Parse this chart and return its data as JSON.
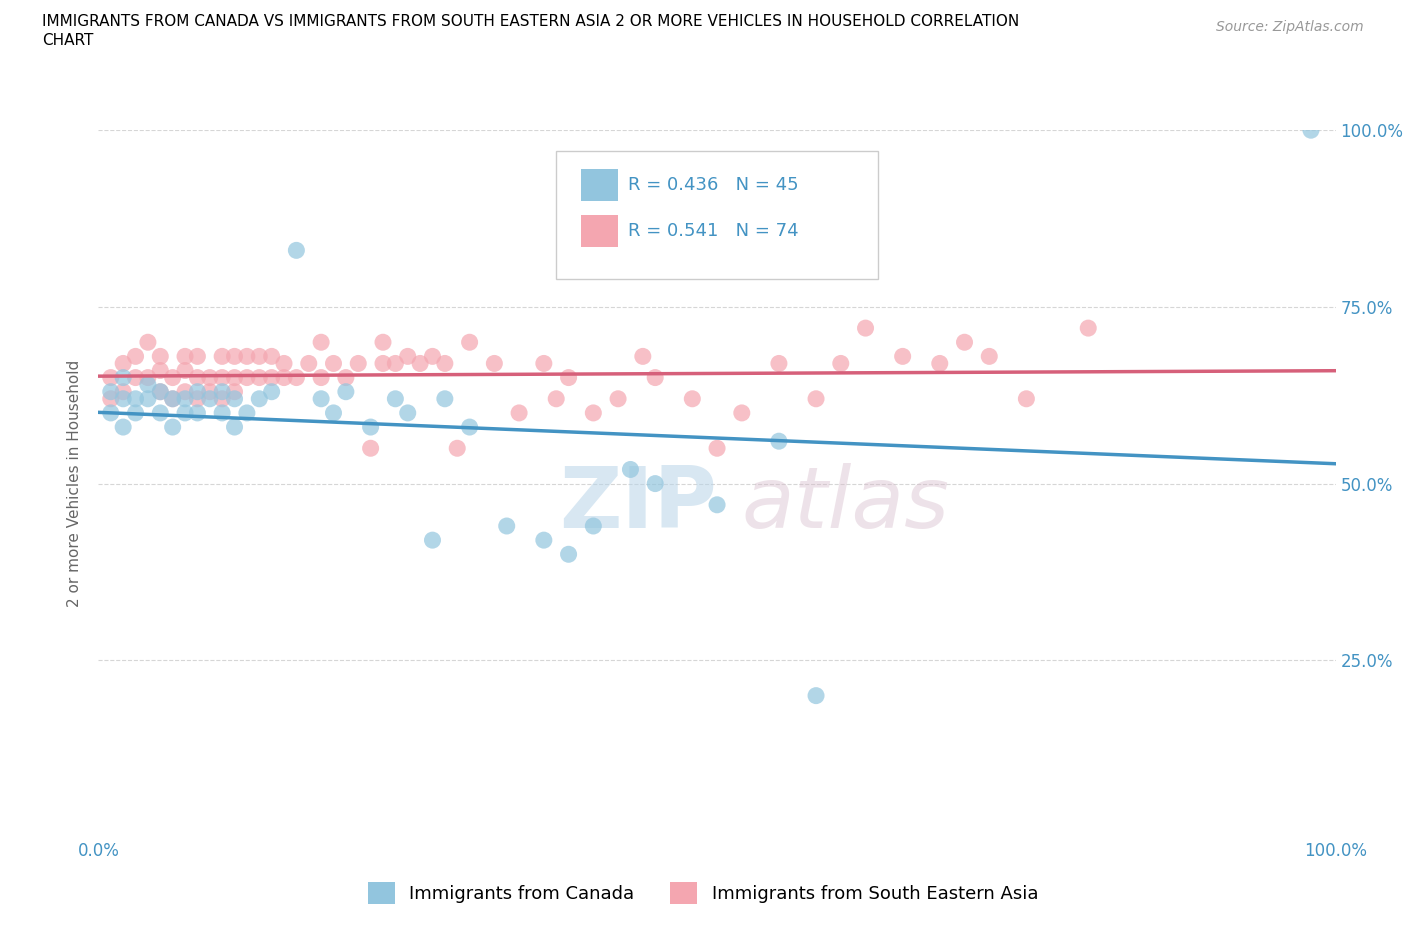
{
  "title_line1": "IMMIGRANTS FROM CANADA VS IMMIGRANTS FROM SOUTH EASTERN ASIA 2 OR MORE VEHICLES IN HOUSEHOLD CORRELATION",
  "title_line2": "CHART",
  "source": "Source: ZipAtlas.com",
  "ylabel": "2 or more Vehicles in Household",
  "xlim": [
    0,
    100
  ],
  "ylim": [
    0,
    100
  ],
  "ytick_labels": [
    "25.0%",
    "50.0%",
    "75.0%",
    "100.0%"
  ],
  "ytick_positions": [
    25,
    50,
    75,
    100
  ],
  "legend_r_canada": "R = 0.436",
  "legend_n_canada": "N = 45",
  "legend_r_sea": "R = 0.541",
  "legend_n_sea": "N = 74",
  "color_canada": "#92c5de",
  "color_sea": "#f4a6b0",
  "color_regression_canada": "#4393c3",
  "color_regression_sea": "#d6607a",
  "color_title": "#000000",
  "color_source": "#999999",
  "color_axis_labels": "#4393c3",
  "background_color": "#ffffff",
  "grid_color": "#cccccc",
  "canada_x": [
    1,
    1,
    2,
    2,
    2,
    3,
    3,
    4,
    4,
    5,
    5,
    6,
    6,
    7,
    7,
    8,
    8,
    9,
    10,
    10,
    11,
    11,
    12,
    13,
    14,
    16,
    18,
    19,
    20,
    22,
    24,
    25,
    27,
    28,
    30,
    33,
    36,
    38,
    40,
    43,
    45,
    50,
    55,
    58,
    98
  ],
  "canada_y": [
    63,
    60,
    58,
    62,
    65,
    60,
    62,
    64,
    62,
    63,
    60,
    62,
    58,
    60,
    62,
    63,
    60,
    62,
    63,
    60,
    62,
    58,
    60,
    62,
    63,
    83,
    62,
    60,
    63,
    58,
    62,
    60,
    42,
    62,
    58,
    44,
    42,
    40,
    44,
    52,
    50,
    47,
    56,
    20,
    100
  ],
  "sea_x": [
    1,
    1,
    2,
    2,
    3,
    3,
    4,
    4,
    5,
    5,
    5,
    6,
    6,
    7,
    7,
    7,
    8,
    8,
    8,
    9,
    9,
    10,
    10,
    10,
    11,
    11,
    11,
    12,
    12,
    13,
    13,
    14,
    14,
    15,
    15,
    16,
    17,
    18,
    18,
    19,
    20,
    21,
    22,
    23,
    23,
    24,
    25,
    26,
    27,
    28,
    29,
    30,
    32,
    34,
    36,
    37,
    38,
    40,
    42,
    44,
    45,
    48,
    50,
    52,
    55,
    58,
    60,
    62,
    65,
    68,
    70,
    72,
    75,
    80
  ],
  "sea_y": [
    62,
    65,
    63,
    67,
    65,
    68,
    65,
    70,
    63,
    66,
    68,
    62,
    65,
    63,
    66,
    68,
    62,
    65,
    68,
    63,
    65,
    62,
    65,
    68,
    63,
    65,
    68,
    65,
    68,
    65,
    68,
    65,
    68,
    65,
    67,
    65,
    67,
    65,
    70,
    67,
    65,
    67,
    55,
    67,
    70,
    67,
    68,
    67,
    68,
    67,
    55,
    70,
    67,
    60,
    67,
    62,
    65,
    60,
    62,
    68,
    65,
    62,
    55,
    60,
    67,
    62,
    67,
    72,
    68,
    67,
    70,
    68,
    62,
    72
  ]
}
